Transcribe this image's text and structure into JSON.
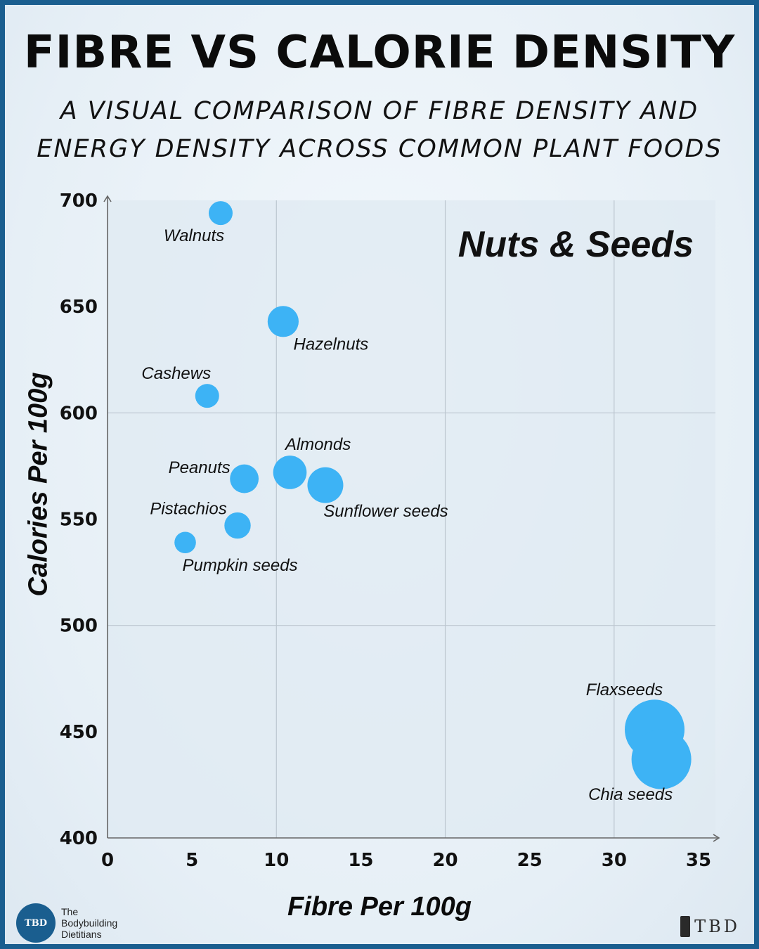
{
  "header": {
    "title": "FIBRE VS CALORIE DENSITY",
    "subtitle_line1": "A VISUAL COMPARISON OF FIBRE DENSITY AND",
    "subtitle_line2": "ENERGY DENSITY ACROSS COMMON PLANT FOODS"
  },
  "chart_data": {
    "type": "scatter",
    "title": "Nuts & Seeds",
    "xlabel": "Fibre Per 100g",
    "ylabel": "Calories Per 100g",
    "xlim": [
      0,
      36
    ],
    "ylim": [
      400,
      700
    ],
    "xticks": [
      0,
      5,
      10,
      15,
      20,
      25,
      30,
      35
    ],
    "yticks": [
      400,
      450,
      500,
      550,
      600,
      650,
      700
    ],
    "grid": true,
    "marker_color": "#3db3f5",
    "points": [
      {
        "label": "Walnuts",
        "x": 6.7,
        "y": 694,
        "size": 1.0
      },
      {
        "label": "Hazelnuts",
        "x": 10.4,
        "y": 643,
        "size": 1.3
      },
      {
        "label": "Cashews",
        "x": 5.9,
        "y": 608,
        "size": 1.0
      },
      {
        "label": "Almonds",
        "x": 10.8,
        "y": 572,
        "size": 1.4
      },
      {
        "label": "Peanuts",
        "x": 8.1,
        "y": 569,
        "size": 1.2
      },
      {
        "label": "Sunflower seeds",
        "x": 12.9,
        "y": 566,
        "size": 1.5
      },
      {
        "label": "Pistachios",
        "x": 7.7,
        "y": 547,
        "size": 1.1
      },
      {
        "label": "Pumpkin seeds",
        "x": 4.6,
        "y": 539,
        "size": 0.9
      },
      {
        "label": "Flaxseeds",
        "x": 32.4,
        "y": 451,
        "size": 2.5
      },
      {
        "label": "Chia seeds",
        "x": 32.8,
        "y": 437,
        "size": 2.5
      }
    ]
  },
  "brand": {
    "left_line1": "The",
    "left_line2": "Bodybuilding",
    "left_line3": "Dietitians",
    "left_badge": "TBD",
    "right_mark": "TBD"
  }
}
